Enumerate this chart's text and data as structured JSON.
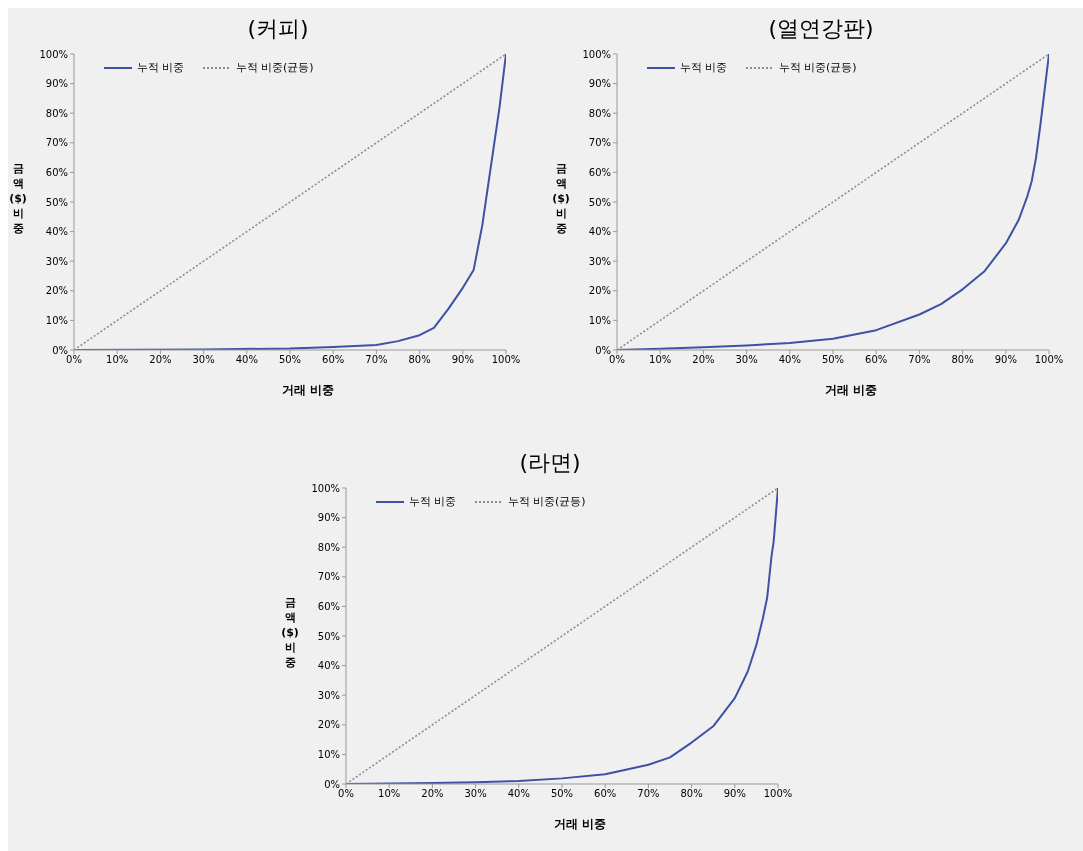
{
  "chart_data": [
    {
      "type": "line",
      "title": "(커피)",
      "xlabel": "거래 비중",
      "ylabel": "금액 ($) 비중",
      "legend": "top left",
      "grid": false,
      "marker": "none",
      "xlim": [
        0,
        100
      ],
      "ylim": [
        0,
        100
      ],
      "xticks": [
        {
          "value": 0,
          "label": "0%"
        },
        {
          "value": 10,
          "label": "10%"
        },
        {
          "value": 20,
          "label": "20%"
        },
        {
          "value": 30,
          "label": "30%"
        },
        {
          "value": 40,
          "label": "40%"
        },
        {
          "value": 50,
          "label": "50%"
        },
        {
          "value": 60,
          "label": "60%"
        },
        {
          "value": 70,
          "label": "70%"
        },
        {
          "value": 80,
          "label": "80%"
        },
        {
          "value": 90,
          "label": "90%"
        },
        {
          "value": 100,
          "label": "100%"
        }
      ],
      "yticks": [
        {
          "value": 0,
          "label": "0%"
        },
        {
          "value": 10,
          "label": "10%"
        },
        {
          "value": 20,
          "label": "20%"
        },
        {
          "value": 30,
          "label": "30%"
        },
        {
          "value": 40,
          "label": "40%"
        },
        {
          "value": 50,
          "label": "50%"
        },
        {
          "value": 60,
          "label": "60%"
        },
        {
          "value": 70,
          "label": "70%"
        },
        {
          "value": 80,
          "label": "80%"
        },
        {
          "value": 90,
          "label": "90%"
        },
        {
          "value": 100,
          "label": "100%"
        }
      ],
      "series": [
        {
          "name": "누적 비중",
          "color": "#3f51a3",
          "line_style": "solid",
          "x": [
            0,
            30,
            50,
            60,
            70,
            75,
            80,
            83.3,
            86.7,
            90,
            92.5,
            94.5,
            96.5,
            98.5,
            100
          ],
          "values": [
            0,
            0.2,
            0.5,
            1,
            1.7,
            3,
            5,
            7.5,
            14,
            21,
            27,
            42,
            62,
            82,
            100
          ]
        },
        {
          "name": "누적 비중(균등)",
          "color": "#8c8c8c",
          "line_style": "dotted",
          "x": [
            0,
            100
          ],
          "values": [
            0,
            100
          ]
        }
      ]
    },
    {
      "type": "line",
      "title": "(열연강판)",
      "xlabel": "거래 비중",
      "ylabel": "금액 ($) 비중",
      "legend": "top left",
      "grid": false,
      "marker": "none",
      "xlim": [
        0,
        100
      ],
      "ylim": [
        0,
        100
      ],
      "xticks": [
        {
          "value": 0,
          "label": "0%"
        },
        {
          "value": 10,
          "label": "10%"
        },
        {
          "value": 20,
          "label": "20%"
        },
        {
          "value": 30,
          "label": "30%"
        },
        {
          "value": 40,
          "label": "40%"
        },
        {
          "value": 50,
          "label": "50%"
        },
        {
          "value": 60,
          "label": "60%"
        },
        {
          "value": 70,
          "label": "70%"
        },
        {
          "value": 80,
          "label": "80%"
        },
        {
          "value": 90,
          "label": "90%"
        },
        {
          "value": 100,
          "label": "100%"
        }
      ],
      "yticks": [
        {
          "value": 0,
          "label": "0%"
        },
        {
          "value": 10,
          "label": "10%"
        },
        {
          "value": 20,
          "label": "20%"
        },
        {
          "value": 30,
          "label": "30%"
        },
        {
          "value": 40,
          "label": "40%"
        },
        {
          "value": 50,
          "label": "50%"
        },
        {
          "value": 60,
          "label": "60%"
        },
        {
          "value": 70,
          "label": "70%"
        },
        {
          "value": 80,
          "label": "80%"
        },
        {
          "value": 90,
          "label": "90%"
        },
        {
          "value": 100,
          "label": "100%"
        }
      ],
      "series": [
        {
          "name": "누적 비중",
          "color": "#3f51a3",
          "line_style": "solid",
          "x": [
            0,
            10,
            20,
            30,
            40,
            50,
            60,
            70,
            75,
            80,
            85,
            90,
            93,
            95,
            96,
            97,
            98,
            99,
            100
          ],
          "values": [
            0,
            0.4,
            0.9,
            1.5,
            2.4,
            3.8,
            6.7,
            12,
            15.5,
            20.5,
            26.5,
            36,
            44,
            52,
            57,
            65,
            76,
            88,
            100
          ]
        },
        {
          "name": "누적 비중(균등)",
          "color": "#8c8c8c",
          "line_style": "dotted",
          "x": [
            0,
            100
          ],
          "values": [
            0,
            100
          ]
        }
      ]
    },
    {
      "type": "line",
      "title": "(라면)",
      "xlabel": "거래 비중",
      "ylabel": "금액 ($) 비중",
      "legend": "top left",
      "grid": false,
      "marker": "none",
      "xlim": [
        0,
        100
      ],
      "ylim": [
        0,
        100
      ],
      "xticks": [
        {
          "value": 0,
          "label": "0%"
        },
        {
          "value": 10,
          "label": "10%"
        },
        {
          "value": 20,
          "label": "20%"
        },
        {
          "value": 30,
          "label": "30%"
        },
        {
          "value": 40,
          "label": "40%"
        },
        {
          "value": 50,
          "label": "50%"
        },
        {
          "value": 60,
          "label": "60%"
        },
        {
          "value": 70,
          "label": "70%"
        },
        {
          "value": 80,
          "label": "80%"
        },
        {
          "value": 90,
          "label": "90%"
        },
        {
          "value": 100,
          "label": "100%"
        }
      ],
      "yticks": [
        {
          "value": 0,
          "label": "0%"
        },
        {
          "value": 10,
          "label": "10%"
        },
        {
          "value": 20,
          "label": "20%"
        },
        {
          "value": 30,
          "label": "30%"
        },
        {
          "value": 40,
          "label": "40%"
        },
        {
          "value": 50,
          "label": "50%"
        },
        {
          "value": 60,
          "label": "60%"
        },
        {
          "value": 70,
          "label": "70%"
        },
        {
          "value": 80,
          "label": "80%"
        },
        {
          "value": 90,
          "label": "90%"
        },
        {
          "value": 100,
          "label": "100%"
        }
      ],
      "series": [
        {
          "name": "누적 비중",
          "color": "#3f51a3",
          "line_style": "solid",
          "x": [
            0,
            10,
            20,
            30,
            40,
            50,
            60,
            70,
            75,
            80,
            85,
            90,
            93,
            95,
            96.5,
            97.5,
            98.5,
            99,
            100
          ],
          "values": [
            0,
            0.2,
            0.3,
            0.6,
            1,
            1.9,
            3.3,
            6.5,
            9,
            14,
            19.5,
            29,
            38,
            47,
            56,
            63,
            77,
            82,
            100
          ]
        },
        {
          "name": "누적 비중(균등)",
          "color": "#8c8c8c",
          "line_style": "dotted",
          "x": [
            0,
            100
          ],
          "values": [
            0,
            100
          ]
        }
      ]
    }
  ]
}
